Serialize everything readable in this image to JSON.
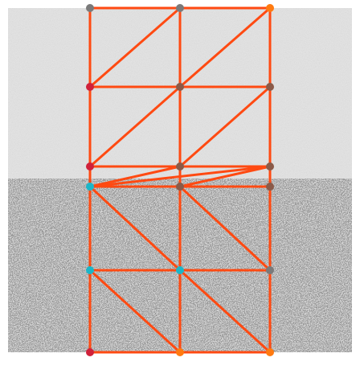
{
  "image": {
    "description_visible": false
  },
  "colors": {
    "page_bg": "#ffffff",
    "mesh_edge": "#ff4a12",
    "wall_upper": "#e7e7e7",
    "wall_lower": "#5a5a5a",
    "node_gray": "#7a7a7a",
    "node_crimson": "#d0213a",
    "node_orange": "#ff7a10",
    "node_brown": "#8a5a48",
    "node_cyan": "#1bb6c8"
  },
  "mesh": {
    "columns": [
      "c0",
      "c1",
      "c2"
    ],
    "rows": [
      "r0",
      "r1",
      "r2",
      "r3",
      "r4",
      "r5"
    ],
    "nodes": [
      {
        "id": "n00",
        "col": 0,
        "row": 0,
        "color_key": "node_gray"
      },
      {
        "id": "n10",
        "col": 1,
        "row": 0,
        "color_key": "node_gray"
      },
      {
        "id": "n20",
        "col": 2,
        "row": 0,
        "color_key": "node_orange"
      },
      {
        "id": "n01",
        "col": 0,
        "row": 1,
        "color_key": "node_crimson"
      },
      {
        "id": "n11",
        "col": 1,
        "row": 1,
        "color_key": "node_brown"
      },
      {
        "id": "n21",
        "col": 2,
        "row": 1,
        "color_key": "node_brown"
      },
      {
        "id": "n02",
        "col": 0,
        "row": 2,
        "color_key": "node_crimson"
      },
      {
        "id": "n12",
        "col": 1,
        "row": 2,
        "color_key": "node_brown"
      },
      {
        "id": "n22",
        "col": 2,
        "row": 2,
        "color_key": "node_brown"
      },
      {
        "id": "n03",
        "col": 0,
        "row": 3,
        "color_key": "node_cyan"
      },
      {
        "id": "n13",
        "col": 1,
        "row": 3,
        "color_key": "node_brown"
      },
      {
        "id": "n23",
        "col": 2,
        "row": 3,
        "color_key": "node_brown"
      },
      {
        "id": "n04",
        "col": 0,
        "row": 4,
        "color_key": "node_cyan"
      },
      {
        "id": "n14",
        "col": 1,
        "row": 4,
        "color_key": "node_cyan"
      },
      {
        "id": "n24",
        "col": 2,
        "row": 4,
        "color_key": "node_gray"
      },
      {
        "id": "n05",
        "col": 0,
        "row": 5,
        "color_key": "node_crimson"
      },
      {
        "id": "n15",
        "col": 1,
        "row": 5,
        "color_key": "node_orange"
      },
      {
        "id": "n25",
        "col": 2,
        "row": 5,
        "color_key": "node_orange"
      }
    ],
    "edges": [
      [
        "n00",
        "n10"
      ],
      [
        "n10",
        "n20"
      ],
      [
        "n01",
        "n11"
      ],
      [
        "n11",
        "n21"
      ],
      [
        "n02",
        "n12"
      ],
      [
        "n12",
        "n22"
      ],
      [
        "n03",
        "n13"
      ],
      [
        "n13",
        "n23"
      ],
      [
        "n04",
        "n14"
      ],
      [
        "n14",
        "n24"
      ],
      [
        "n05",
        "n15"
      ],
      [
        "n15",
        "n25"
      ],
      [
        "n00",
        "n01"
      ],
      [
        "n01",
        "n02"
      ],
      [
        "n02",
        "n03"
      ],
      [
        "n03",
        "n04"
      ],
      [
        "n04",
        "n05"
      ],
      [
        "n10",
        "n11"
      ],
      [
        "n11",
        "n12"
      ],
      [
        "n12",
        "n13"
      ],
      [
        "n13",
        "n14"
      ],
      [
        "n14",
        "n15"
      ],
      [
        "n20",
        "n21"
      ],
      [
        "n21",
        "n22"
      ],
      [
        "n22",
        "n23"
      ],
      [
        "n23",
        "n24"
      ],
      [
        "n24",
        "n25"
      ],
      [
        "n01",
        "n10"
      ],
      [
        "n11",
        "n20"
      ],
      [
        "n02",
        "n11"
      ],
      [
        "n12",
        "n21"
      ],
      [
        "n03",
        "n12"
      ],
      [
        "n13",
        "n22"
      ],
      [
        "n03",
        "n22"
      ],
      [
        "n03",
        "n14"
      ],
      [
        "n13",
        "n24"
      ],
      [
        "n04",
        "n15"
      ],
      [
        "n14",
        "n25"
      ]
    ]
  }
}
